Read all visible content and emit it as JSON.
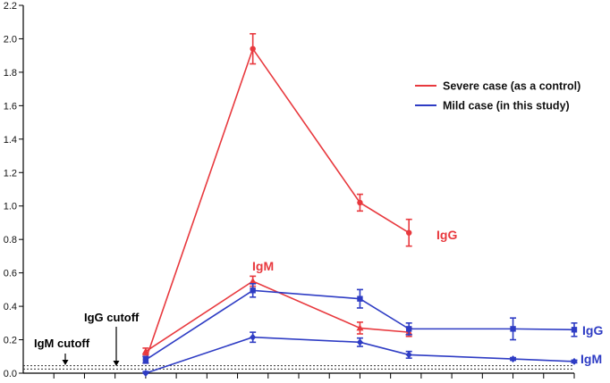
{
  "chart_data": {
    "type": "line",
    "ylim": [
      0,
      2.2
    ],
    "yticks": [
      "0.0",
      "0.2",
      "0.4",
      "0.6",
      "0.8",
      "1.0",
      "1.2",
      "1.4",
      "1.6",
      "1.8",
      "2.0",
      "2.2"
    ],
    "x_tick_count": 18,
    "grid": false,
    "legend_position": "top-right",
    "legend": [
      {
        "label": "Severe case (as a control)",
        "color": "#e8393e"
      },
      {
        "label": "Mild case (in this study)",
        "color": "#2e3cc4"
      }
    ],
    "series": [
      {
        "group": "severe",
        "label": "IgG",
        "color": "#e8393e",
        "marker": "circle",
        "x": [
          4,
          7.5,
          11,
          12.6
        ],
        "y": [
          0.08,
          1.94,
          1.02,
          0.84
        ],
        "err": [
          0.02,
          0.09,
          0.05,
          0.08
        ]
      },
      {
        "group": "severe",
        "label": "IgM",
        "color": "#e8393e",
        "marker": "triangle",
        "x": [
          4,
          7.5,
          11,
          12.6
        ],
        "y": [
          0.13,
          0.55,
          0.27,
          0.245
        ],
        "err": [
          0.02,
          0.03,
          0.035,
          0.025
        ]
      },
      {
        "group": "mild",
        "label": "IgG",
        "color": "#2e3cc4",
        "marker": "square",
        "x": [
          4,
          7.5,
          11,
          12.6,
          16,
          18
        ],
        "y": [
          0.08,
          0.495,
          0.445,
          0.265,
          0.265,
          0.26
        ],
        "err": [
          0.02,
          0.04,
          0.055,
          0.035,
          0.065,
          0.04
        ]
      },
      {
        "group": "mild",
        "label": "IgM",
        "color": "#2e3cc4",
        "marker": "diamond",
        "x": [
          4,
          7.5,
          11,
          12.6,
          16,
          18
        ],
        "y": [
          0.0,
          0.215,
          0.185,
          0.11,
          0.085,
          0.07
        ],
        "err": [
          0.01,
          0.03,
          0.025,
          0.02,
          0.008,
          0.008
        ]
      }
    ],
    "series_labels": {
      "severe_igg": "IgG",
      "severe_igm": "IgM",
      "mild_igg": "IgG",
      "mild_igm": "IgM"
    },
    "cutoffs": [
      {
        "label": "IgM cutoff",
        "y": 0.025
      },
      {
        "label": "IgG cutoff",
        "y": 0.045
      }
    ]
  }
}
